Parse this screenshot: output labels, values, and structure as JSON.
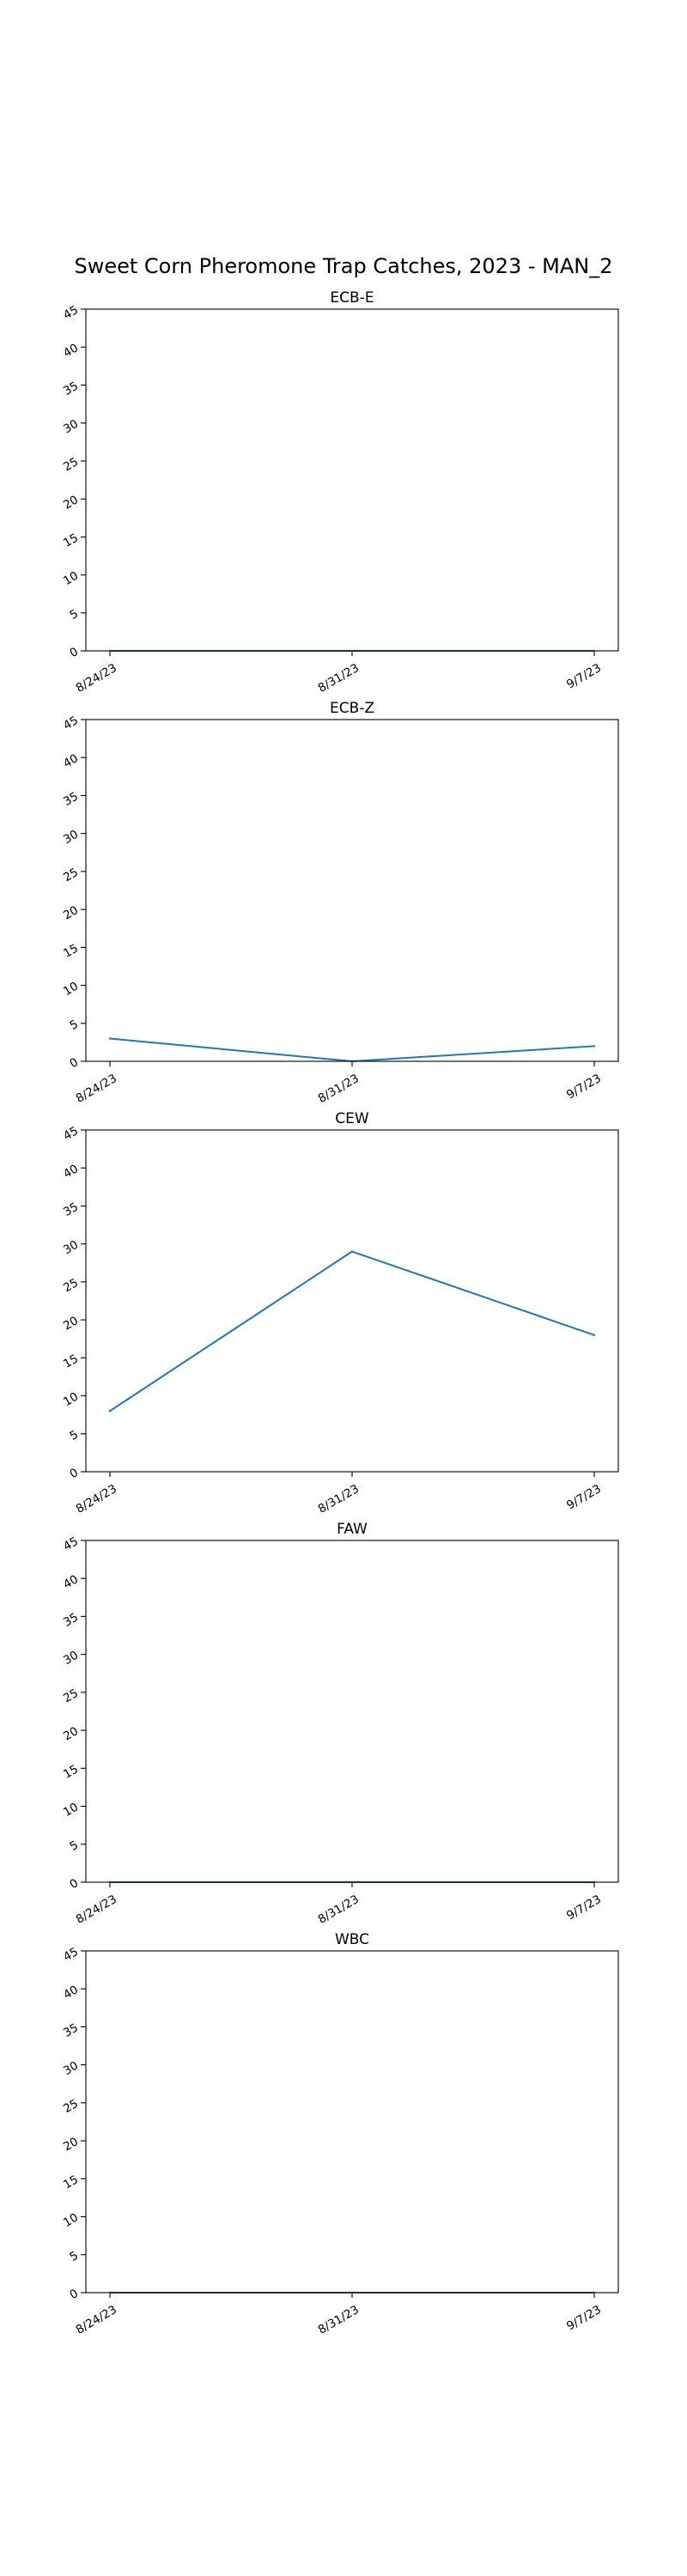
{
  "figure": {
    "title": "Sweet Corn Pheromone Trap Catches, 2023 - MAN_2"
  },
  "colors": {
    "series": "#1f77b4",
    "axes": "#000000",
    "background": "#ffffff"
  },
  "chart_data": [
    {
      "type": "line",
      "title": "ECB-E",
      "categories": [
        "8/24/23",
        "8/31/23",
        "9/7/23"
      ],
      "series": [
        {
          "values": [
            0,
            0,
            0
          ]
        }
      ],
      "ylim": [
        0,
        45
      ],
      "yticks": [
        "0",
        "5",
        "10",
        "15",
        "20",
        "25",
        "30",
        "35",
        "40",
        "45"
      ],
      "xlabel": "",
      "ylabel": "",
      "grid": false
    },
    {
      "type": "line",
      "title": "ECB-Z",
      "categories": [
        "8/24/23",
        "8/31/23",
        "9/7/23"
      ],
      "series": [
        {
          "values": [
            3,
            0,
            2
          ]
        }
      ],
      "ylim": [
        0,
        45
      ],
      "yticks": [
        "0",
        "5",
        "10",
        "15",
        "20",
        "25",
        "30",
        "35",
        "40",
        "45"
      ],
      "xlabel": "",
      "ylabel": "",
      "grid": false
    },
    {
      "type": "line",
      "title": "CEW",
      "categories": [
        "8/24/23",
        "8/31/23",
        "9/7/23"
      ],
      "series": [
        {
          "values": [
            8,
            29,
            18
          ]
        }
      ],
      "ylim": [
        0,
        45
      ],
      "yticks": [
        "0",
        "5",
        "10",
        "15",
        "20",
        "25",
        "30",
        "35",
        "40",
        "45"
      ],
      "xlabel": "",
      "ylabel": "",
      "grid": false
    },
    {
      "type": "line",
      "title": "FAW",
      "categories": [
        "8/24/23",
        "8/31/23",
        "9/7/23"
      ],
      "series": [
        {
          "values": [
            0,
            0,
            0
          ]
        }
      ],
      "ylim": [
        0,
        45
      ],
      "yticks": [
        "0",
        "5",
        "10",
        "15",
        "20",
        "25",
        "30",
        "35",
        "40",
        "45"
      ],
      "xlabel": "",
      "ylabel": "",
      "grid": false
    },
    {
      "type": "line",
      "title": "WBC",
      "categories": [
        "8/24/23",
        "8/31/23",
        "9/7/23"
      ],
      "series": [
        {
          "values": [
            0,
            0,
            0
          ]
        }
      ],
      "ylim": [
        0,
        45
      ],
      "yticks": [
        "0",
        "5",
        "10",
        "15",
        "20",
        "25",
        "30",
        "35",
        "40",
        "45"
      ],
      "xlabel": "",
      "ylabel": "",
      "grid": false
    }
  ]
}
